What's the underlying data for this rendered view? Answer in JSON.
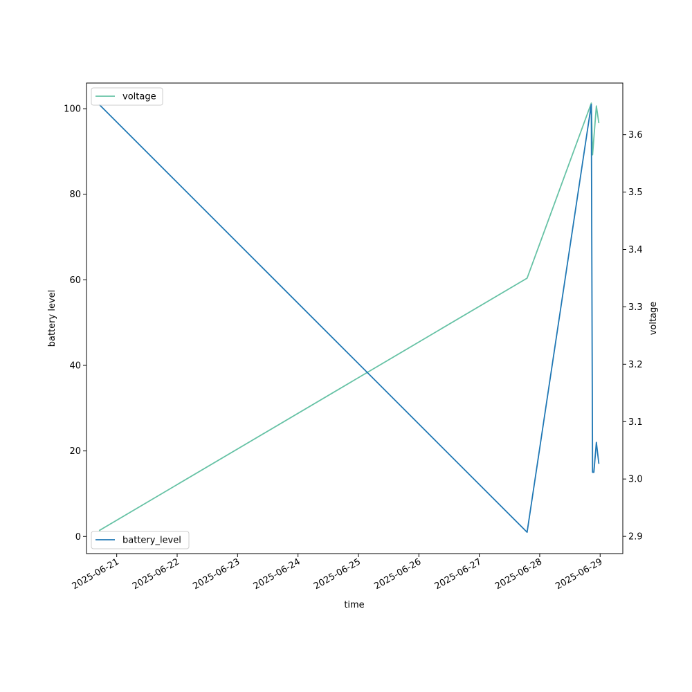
{
  "chart_data": {
    "type": "line",
    "xlabel": "time",
    "ylabel_left": "battery level",
    "ylabel_right": "voltage",
    "x_ticks": [
      "2025-06-21",
      "2025-06-22",
      "2025-06-23",
      "2025-06-24",
      "2025-06-25",
      "2025-06-26",
      "2025-06-27",
      "2025-06-28",
      "2025-06-29"
    ],
    "xlim": [
      "2025-06-20T12:00",
      "2025-06-29T09:00"
    ],
    "y_left_ticks": [
      "0",
      "20",
      "40",
      "60",
      "80",
      "100"
    ],
    "y_left_lim": [
      -4,
      106
    ],
    "y_right_ticks": [
      "2.9",
      "3.0",
      "3.1",
      "3.2",
      "3.3",
      "3.4",
      "3.5",
      "3.6"
    ],
    "y_right_lim": [
      2.87,
      3.69
    ],
    "grid": false,
    "series": [
      {
        "name": "battery_level",
        "axis": "left",
        "color": "#1f77b4",
        "legend_position": "lower-left",
        "x": [
          "2025-06-20T17:00",
          "2025-06-27T19:00",
          "2025-06-28T20:30",
          "2025-06-28T21:00",
          "2025-06-28T21:30",
          "2025-06-28T22:30",
          "2025-06-28T23:30"
        ],
        "values": [
          101,
          1,
          101,
          15,
          15,
          22,
          17
        ]
      },
      {
        "name": "voltage",
        "axis": "right",
        "color": "#66c2a5",
        "legend_position": "upper-left",
        "x": [
          "2025-06-20T17:00",
          "2025-06-27T19:00",
          "2025-06-28T20:30",
          "2025-06-28T21:00",
          "2025-06-28T22:30",
          "2025-06-28T23:30"
        ],
        "values": [
          2.91,
          3.35,
          3.655,
          3.565,
          3.65,
          3.62
        ]
      }
    ]
  }
}
